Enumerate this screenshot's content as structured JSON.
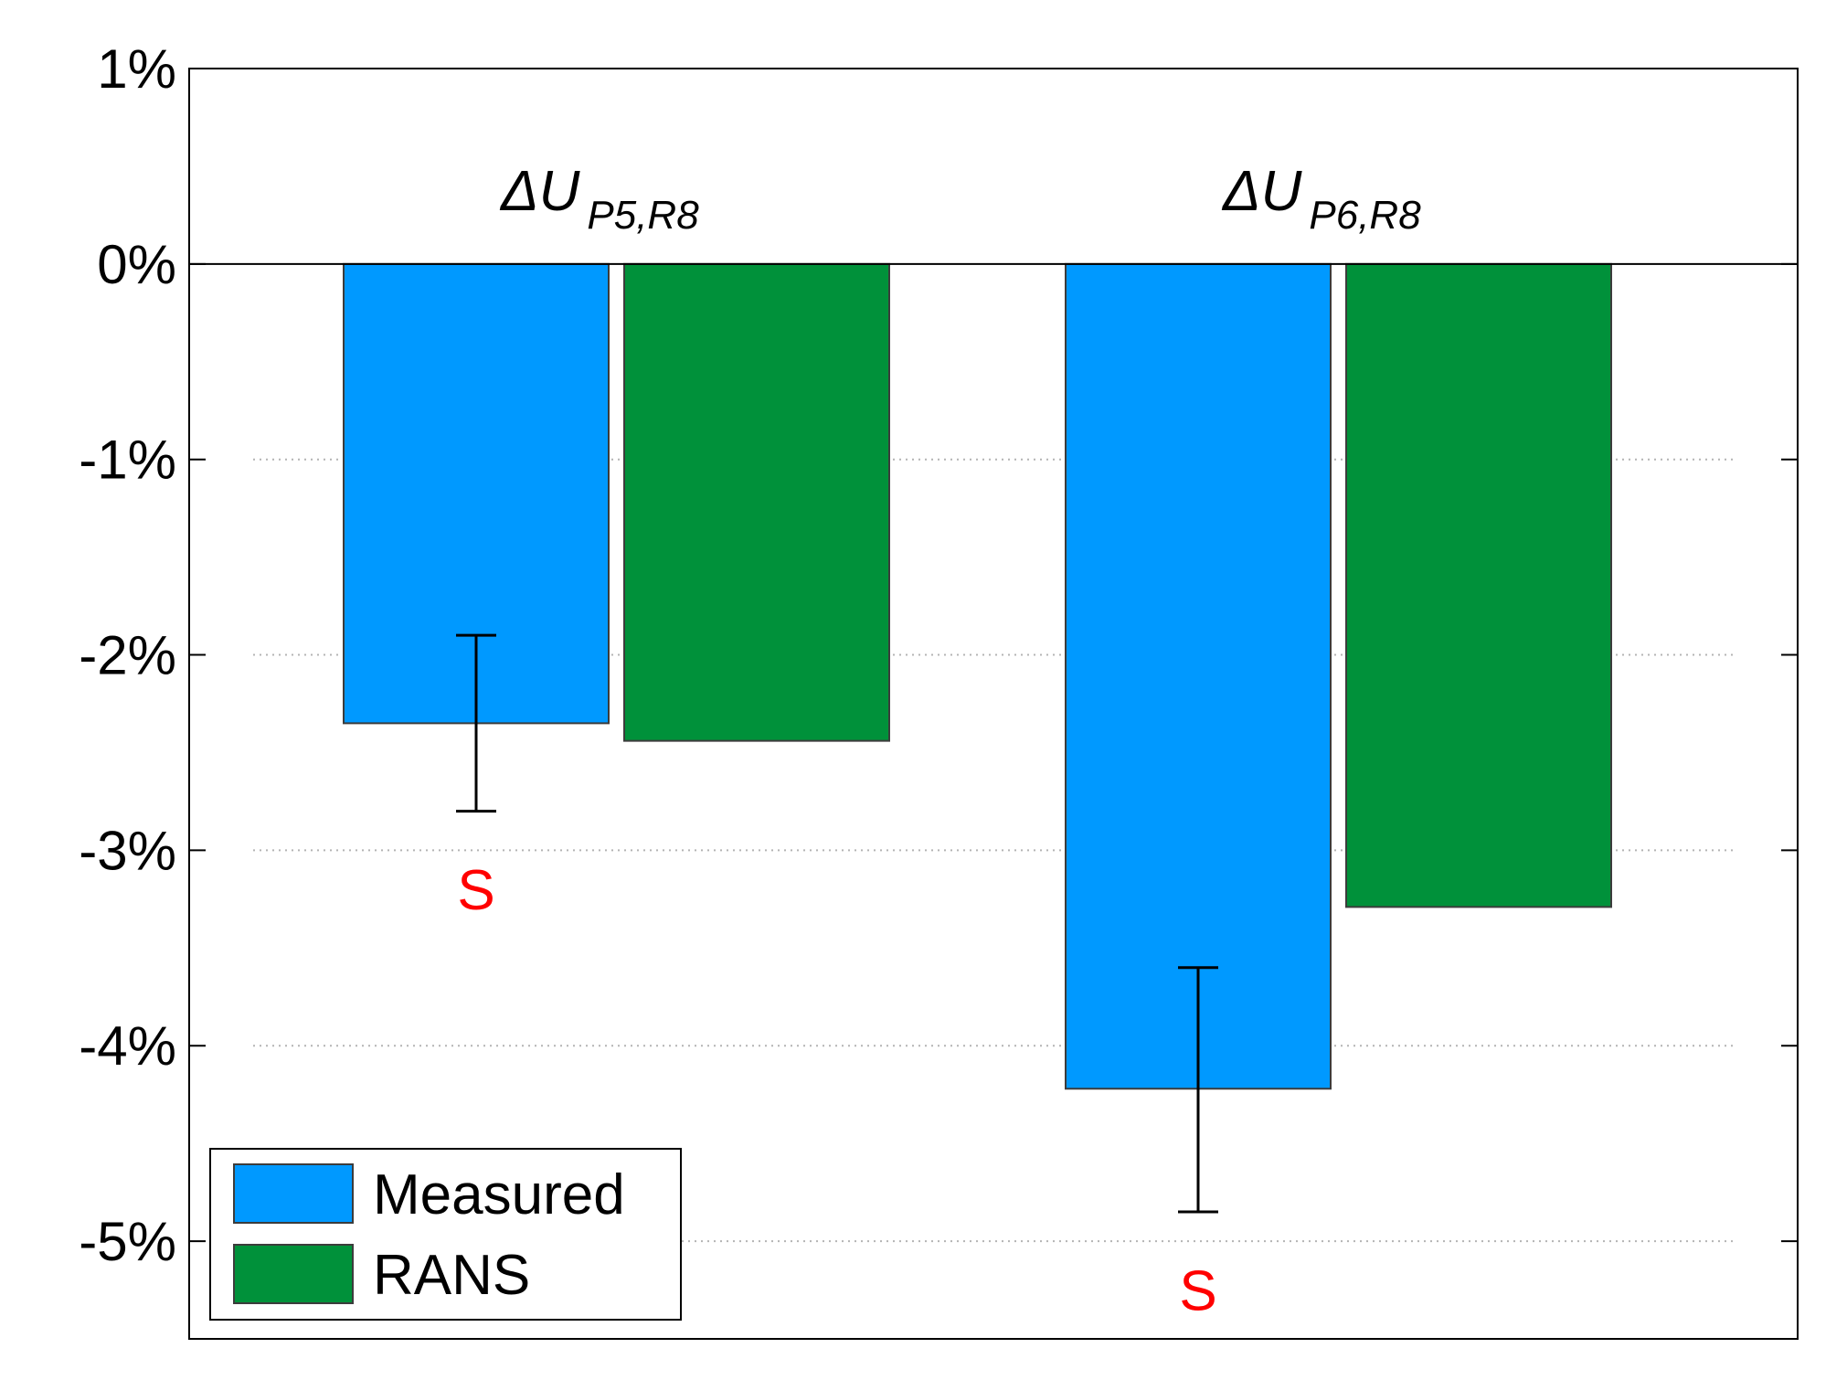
{
  "chart_data": {
    "type": "bar",
    "categories": [
      {
        "main": "ΔU",
        "sub": "P5,R8"
      },
      {
        "main": "ΔU",
        "sub": "P6,R8"
      }
    ],
    "series": [
      {
        "name": "Measured",
        "color": "#0099ff",
        "values": [
          -2.35,
          -4.22
        ],
        "error": [
          [
            -2.8,
            -1.9
          ],
          [
            -4.85,
            -3.6
          ]
        ]
      },
      {
        "name": "RANS",
        "color": "#00913a",
        "values": [
          -2.44,
          -3.29
        ]
      }
    ],
    "annotations": [
      {
        "category": 0,
        "text": "S",
        "y": -3.2,
        "color": "#ff0000"
      },
      {
        "category": 1,
        "text": "S",
        "y": -5.25,
        "color": "#ff0000"
      }
    ],
    "yticks": [
      1,
      0,
      -1,
      -2,
      -3,
      -4,
      -5
    ],
    "ytick_labels": [
      "1%",
      "0%",
      "-1%",
      "-2%",
      "-3%",
      "-4%",
      "-5%"
    ],
    "ylim": [
      -5.5,
      1
    ],
    "legend": {
      "position": "bottom-left"
    },
    "grid": "y-dotted"
  }
}
